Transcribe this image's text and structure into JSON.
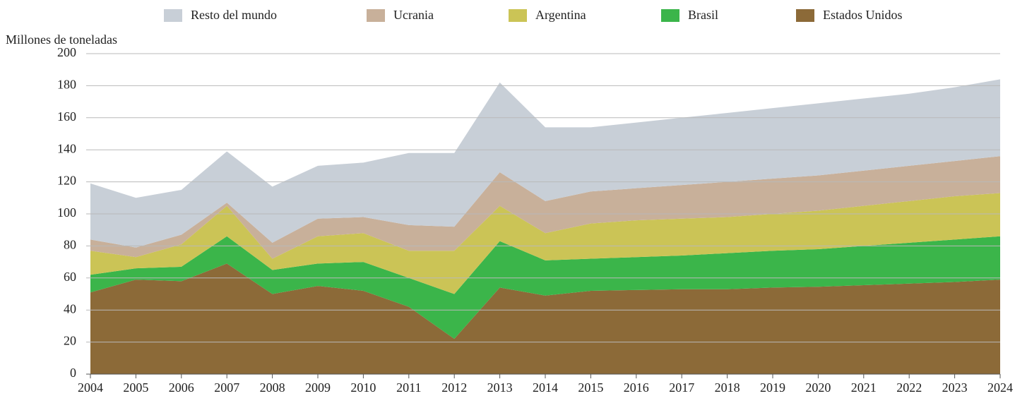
{
  "chart_data": {
    "type": "stacked_area",
    "y_axis_label": "Millones de toneladas",
    "x": [
      2004,
      2005,
      2006,
      2007,
      2008,
      2009,
      2010,
      2011,
      2012,
      2013,
      2014,
      2015,
      2016,
      2017,
      2018,
      2019,
      2020,
      2021,
      2022,
      2023,
      2024
    ],
    "xlim": [
      2004,
      2024
    ],
    "ylim": [
      0,
      200
    ],
    "yticks": [
      0,
      20,
      40,
      60,
      80,
      100,
      120,
      140,
      160,
      180,
      200
    ],
    "grid": true,
    "legend": "top",
    "series": [
      {
        "name": "Resto del mundo",
        "color": "#c8cfd7",
        "values": [
          35,
          31,
          28,
          32,
          35,
          33,
          34,
          45,
          46,
          56,
          46,
          40,
          41,
          42,
          43,
          44,
          45,
          45,
          45,
          46,
          48
        ]
      },
      {
        "name": "Ucrania",
        "color": "#c8b09a",
        "values": [
          7,
          6,
          6,
          2,
          10,
          11,
          10,
          16,
          15,
          21,
          20,
          20,
          20,
          21,
          22,
          22,
          22,
          22,
          22,
          22,
          23
        ]
      },
      {
        "name": "Argentina",
        "color": "#cbc456",
        "values": [
          15,
          7,
          14,
          19,
          7,
          17,
          18,
          17,
          27,
          22,
          17,
          22,
          23,
          23,
          22.5,
          23,
          24,
          25,
          26,
          27,
          27
        ]
      },
      {
        "name": "Brasil",
        "color": "#3bb54a",
        "values": [
          11,
          7,
          9,
          17,
          15,
          14,
          18,
          18,
          28,
          29,
          22,
          20,
          20.5,
          21,
          22.5,
          23,
          23.5,
          24.5,
          25.5,
          26.5,
          27
        ]
      },
      {
        "name": "Estados Unidos",
        "color": "#8c6a38",
        "values": [
          51,
          59,
          58,
          69,
          50,
          55,
          52,
          42,
          22,
          54,
          49,
          52,
          52.5,
          53,
          53,
          54,
          54.5,
          55.5,
          56.5,
          57.5,
          59
        ]
      }
    ]
  }
}
